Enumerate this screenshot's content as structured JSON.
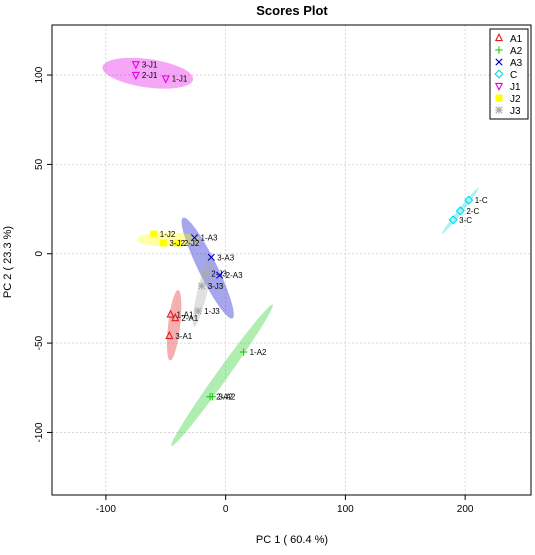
{
  "chart_data": {
    "type": "scatter",
    "title": "Scores Plot",
    "xlabel": "PC 1 ( 60.4 %)",
    "ylabel": "PC 2 ( 23.3 %)",
    "xlim": [
      -145,
      255
    ],
    "ylim": [
      -135,
      128
    ],
    "xticks": [
      -100,
      0,
      100,
      200
    ],
    "yticks": [
      -100,
      -50,
      0,
      50,
      100
    ],
    "xtick_labels": [
      "-100",
      "0",
      "100",
      "200"
    ],
    "ytick_labels": [
      "-100",
      "-50",
      "0",
      "50",
      "100"
    ],
    "grid": true,
    "legend_position": "top-right",
    "series": [
      {
        "name": "A1",
        "color": "#e41a1c",
        "marker": "triangle-up",
        "ellipse": {
          "center": [
            -43,
            -40
          ],
          "angle": 80,
          "semi_axes": [
            20,
            5
          ]
        },
        "points": [
          {
            "x": -46,
            "y": -34,
            "label": "1-A1"
          },
          {
            "x": -42,
            "y": -36,
            "label": "2-A1"
          },
          {
            "x": -47,
            "y": -46,
            "label": "3-A1"
          }
        ]
      },
      {
        "name": "A2",
        "color": "#1dcc1d",
        "marker": "plus",
        "ellipse": {
          "center": [
            -3,
            -68
          ],
          "angle": 43,
          "semi_axes": [
            58,
            4
          ]
        },
        "points": [
          {
            "x": 15,
            "y": -55,
            "label": "1-A2"
          },
          {
            "x": -13,
            "y": -80,
            "label": "2-A2"
          },
          {
            "x": -11,
            "y": -80,
            "label": "3-A2"
          }
        ]
      },
      {
        "name": "A3",
        "color": "#0000cc",
        "marker": "cross",
        "ellipse": {
          "center": [
            -15,
            -8
          ],
          "angle": -53,
          "semi_axes": [
            35,
            7
          ]
        },
        "points": [
          {
            "x": -26,
            "y": 9,
            "label": "1-A3"
          },
          {
            "x": -5,
            "y": -12,
            "label": "2-A3"
          },
          {
            "x": -12,
            "y": -2,
            "label": "3-A3"
          }
        ]
      },
      {
        "name": "C",
        "color": "#00d8e8",
        "marker": "diamond",
        "ellipse": {
          "center": [
            196,
            24
          ],
          "angle": 40,
          "semi_axes": [
            20,
            1.5
          ]
        },
        "points": [
          {
            "x": 203,
            "y": 30,
            "label": "1-C"
          },
          {
            "x": 196,
            "y": 24,
            "label": "2-C"
          },
          {
            "x": 190,
            "y": 19,
            "label": "3-C"
          }
        ]
      },
      {
        "name": "J1",
        "color": "#e600e6",
        "marker": "triangle-down",
        "ellipse": {
          "center": [
            -65,
            101
          ],
          "angle": -5,
          "semi_axes": [
            38,
            8
          ]
        },
        "points": [
          {
            "x": -50,
            "y": 98,
            "label": "1-J1"
          },
          {
            "x": -75,
            "y": 100,
            "label": "2-J1"
          },
          {
            "x": -75,
            "y": 106,
            "label": "3-J1"
          }
        ]
      },
      {
        "name": "J2",
        "color": "#ffff00",
        "marker": "square",
        "ellipse": {
          "center": [
            -48,
            8
          ],
          "angle": 0,
          "semi_axes": [
            26,
            4
          ]
        },
        "points": [
          {
            "x": -60,
            "y": 11,
            "label": "1-J2"
          },
          {
            "x": -40,
            "y": 6,
            "label": "2-J2"
          },
          {
            "x": -52,
            "y": 6,
            "label": "3-J2"
          }
        ]
      },
      {
        "name": "J3",
        "color": "#aaaaaa",
        "marker": "star",
        "ellipse": {
          "center": [
            -19,
            -20
          ],
          "angle": 70,
          "semi_axes": [
            22,
            4
          ]
        },
        "points": [
          {
            "x": -23,
            "y": -32,
            "label": "1-J3"
          },
          {
            "x": -17,
            "y": -11,
            "label": "2-J3"
          },
          {
            "x": -20,
            "y": -18,
            "label": "3-J3"
          }
        ]
      }
    ]
  }
}
